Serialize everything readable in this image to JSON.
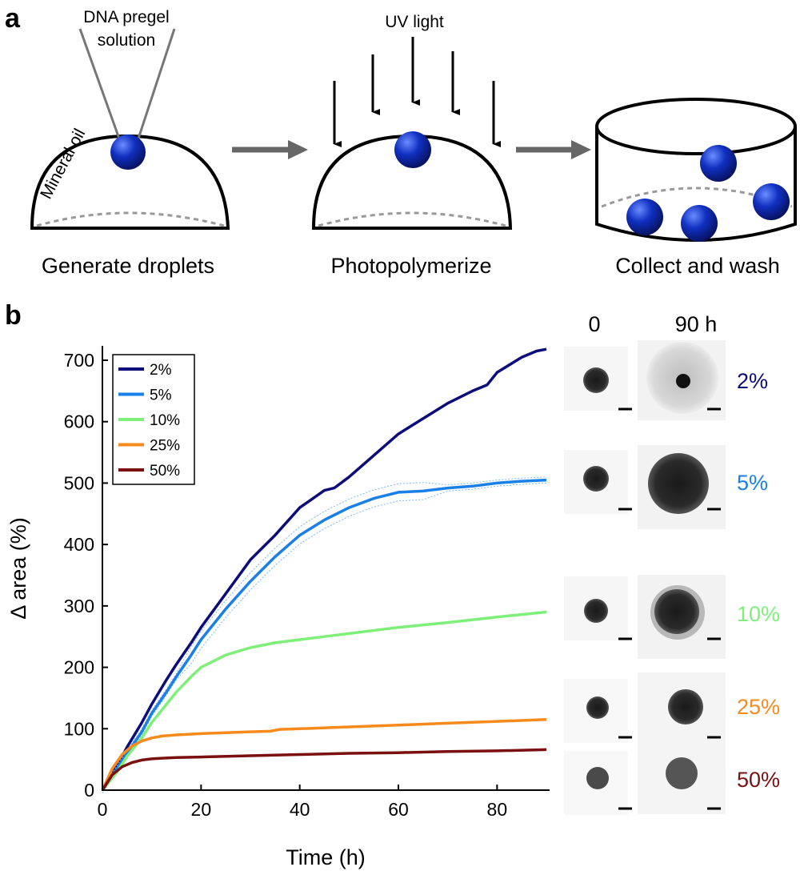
{
  "panel_a": {
    "label": "a",
    "pipette_label_line1": "DNA pregel",
    "pipette_label_line2": "solution",
    "oil_label": "Mineral oil",
    "uv_label": "UV light",
    "steps": [
      "Generate droplets",
      "Photopolymerize",
      "Collect and wash"
    ]
  },
  "panel_b": {
    "label": "b",
    "image_headers": [
      "0",
      "90 h"
    ]
  },
  "chart_data": {
    "type": "line",
    "title": "",
    "xlabel": "Time (h)",
    "ylabel": "Δ area (%)",
    "xlim": [
      0,
      90
    ],
    "ylim": [
      0,
      720
    ],
    "xticks": [
      0,
      20,
      40,
      60,
      80
    ],
    "yticks": [
      0,
      100,
      200,
      300,
      400,
      500,
      600,
      700
    ],
    "legend_position": "top-left",
    "series": [
      {
        "name": "2%",
        "color": "#0c0c7a",
        "x": [
          0,
          3,
          5,
          8,
          10,
          13,
          15,
          18,
          20,
          25,
          30,
          35,
          40,
          45,
          47,
          50,
          55,
          60,
          65,
          70,
          75,
          78,
          80,
          85,
          88,
          90
        ],
        "y": [
          0,
          40,
          70,
          110,
          140,
          180,
          205,
          240,
          265,
          320,
          375,
          415,
          460,
          488,
          492,
          510,
          545,
          580,
          605,
          630,
          650,
          660,
          680,
          705,
          715,
          718
        ]
      },
      {
        "name": "5%",
        "color": "#1a7fe6",
        "x": [
          0,
          3,
          5,
          8,
          10,
          13,
          15,
          18,
          20,
          25,
          30,
          35,
          40,
          45,
          50,
          55,
          60,
          65,
          70,
          75,
          80,
          85,
          90
        ],
        "y": [
          0,
          35,
          60,
          95,
          125,
          160,
          185,
          220,
          245,
          295,
          340,
          380,
          415,
          440,
          460,
          475,
          485,
          487,
          492,
          495,
          500,
          503,
          505
        ]
      },
      {
        "name": "10%",
        "color": "#7ef07a",
        "x": [
          0,
          3,
          5,
          8,
          10,
          13,
          15,
          18,
          20,
          25,
          30,
          35,
          40,
          45,
          50,
          60,
          70,
          80,
          90
        ],
        "y": [
          0,
          30,
          55,
          85,
          110,
          140,
          160,
          185,
          200,
          220,
          232,
          240,
          245,
          250,
          255,
          265,
          273,
          282,
          290
        ]
      },
      {
        "name": "25%",
        "color": "#f78a1d",
        "x": [
          0,
          2,
          4,
          6,
          8,
          10,
          12,
          15,
          20,
          30,
          34,
          36,
          40,
          50,
          60,
          70,
          80,
          90
        ],
        "y": [
          0,
          35,
          58,
          72,
          80,
          85,
          88,
          90,
          92,
          95,
          96,
          99,
          100,
          103,
          106,
          109,
          112,
          115
        ]
      },
      {
        "name": "50%",
        "color": "#7a1010",
        "x": [
          0,
          2,
          4,
          6,
          8,
          10,
          12,
          15,
          20,
          30,
          40,
          50,
          60,
          70,
          80,
          90
        ],
        "y": [
          0,
          25,
          38,
          45,
          49,
          51,
          52,
          53,
          54,
          56,
          58,
          60,
          61,
          63,
          64,
          66
        ]
      }
    ]
  }
}
